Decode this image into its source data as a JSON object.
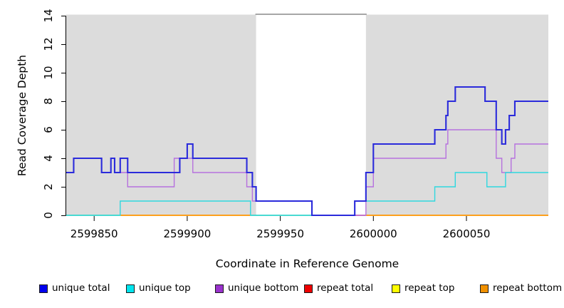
{
  "chart_data": {
    "type": "line",
    "step": true,
    "title": "",
    "xlabel": "Coordinate in Reference Genome",
    "ylabel": "Read Coverage Depth",
    "xlim": [
      2599835,
      2600094
    ],
    "ylim": [
      0,
      14
    ],
    "x_ticks": [
      2599850,
      2599900,
      2599950,
      2600000,
      2600050
    ],
    "y_ticks": [
      0,
      2,
      4,
      6,
      8,
      10,
      12,
      14
    ],
    "grid": false,
    "legend_position": "bottom",
    "shaded_region_color": "#dcdcdc",
    "shaded_regions": [
      {
        "name": "unique-region-left",
        "x1": 2599835,
        "x2": 2599937
      },
      {
        "name": "unique-region-right",
        "x1": 2599996,
        "x2": 2600094
      }
    ],
    "gap_region": {
      "name": "repeat-region-gap",
      "x1": 2599937,
      "x2": 2599996,
      "top_border_color": "#8a8a8a"
    },
    "series": [
      {
        "name": "unique bottom",
        "color": "#b671de",
        "width": 1.4,
        "end": 2600094,
        "steps": [
          [
            2599835,
            3
          ],
          [
            2599839,
            4
          ],
          [
            2599854,
            3
          ],
          [
            2599859,
            4
          ],
          [
            2599861,
            3
          ],
          [
            2599868,
            2
          ],
          [
            2599893,
            4
          ],
          [
            2599903,
            3
          ],
          [
            2599932,
            2
          ],
          [
            2599935,
            1
          ],
          [
            2599967,
            0
          ],
          [
            2599996,
            2
          ],
          [
            2600000,
            4
          ],
          [
            2600039,
            5
          ],
          [
            2600040,
            6
          ],
          [
            2600066,
            4
          ],
          [
            2600069,
            3
          ],
          [
            2600074,
            4
          ],
          [
            2600076,
            5
          ]
        ]
      },
      {
        "name": "unique top",
        "color": "#2fd8df",
        "width": 1.4,
        "end": 2600094,
        "steps": [
          [
            2599835,
            0
          ],
          [
            2599864,
            1
          ],
          [
            2599934,
            0
          ],
          [
            2599990,
            1
          ],
          [
            2600033,
            2
          ],
          [
            2600044,
            3
          ],
          [
            2600061,
            2
          ],
          [
            2600071,
            3
          ]
        ]
      },
      {
        "name": "unique total",
        "color": "#2b2bdb",
        "width": 2.1,
        "end": 2600094,
        "steps": [
          [
            2599835,
            3
          ],
          [
            2599839,
            4
          ],
          [
            2599854,
            3
          ],
          [
            2599859,
            4
          ],
          [
            2599861,
            3
          ],
          [
            2599864,
            4
          ],
          [
            2599868,
            3
          ],
          [
            2599896,
            4
          ],
          [
            2599900,
            5
          ],
          [
            2599903,
            4
          ],
          [
            2599932,
            3
          ],
          [
            2599935,
            2
          ],
          [
            2599937,
            1
          ],
          [
            2599967,
            0
          ],
          [
            2599990,
            1
          ],
          [
            2599996,
            3
          ],
          [
            2600000,
            5
          ],
          [
            2600033,
            6
          ],
          [
            2600039,
            7
          ],
          [
            2600040,
            8
          ],
          [
            2600044,
            9
          ],
          [
            2600060,
            8
          ],
          [
            2600066,
            6
          ],
          [
            2600069,
            5
          ],
          [
            2600071,
            6
          ],
          [
            2600073,
            7
          ],
          [
            2600076,
            8
          ]
        ]
      }
    ],
    "zero_segments": [
      {
        "name": "repeat-top-over-unique-top-blend",
        "color": "#79d38f",
        "x1": 2599835,
        "x2": 2599864
      },
      {
        "name": "repeat-bottom-left",
        "color": "#ff9500",
        "x1": 2599864,
        "x2": 2599934
      },
      {
        "name": "repeat-top-over-unique-top-blend-2",
        "color": "#79d38f",
        "x1": 2599934,
        "x2": 2599967
      },
      {
        "name": "repeat-total-at-zero",
        "color": "#dd4455",
        "x1": 2599990,
        "x2": 2599996
      },
      {
        "name": "repeat-bottom-right",
        "color": "#ff9500",
        "x1": 2599996,
        "x2": 2600094
      }
    ],
    "legend": [
      {
        "label": "unique total",
        "color": "#0000ee"
      },
      {
        "label": "unique top",
        "color": "#00e5ee"
      },
      {
        "label": "unique bottom",
        "color": "#9a32cd"
      },
      {
        "label": "repeat total",
        "color": "#ee0000"
      },
      {
        "label": "repeat top",
        "color": "#ffff00"
      },
      {
        "label": "repeat bottom",
        "color": "#f09000"
      }
    ],
    "axis_color": "#000000",
    "tick_label_font_px": 15
  }
}
